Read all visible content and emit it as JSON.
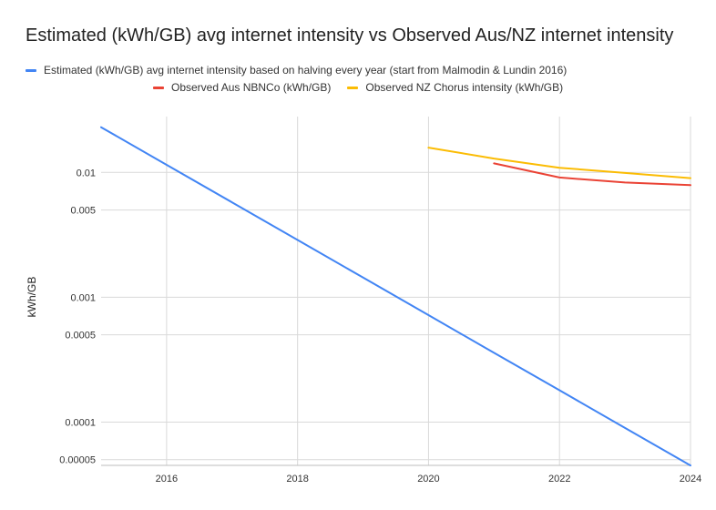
{
  "chart_data": {
    "type": "line",
    "title": "Estimated (kWh/GB) avg internet intensity vs Observed Aus/NZ internet intensity",
    "xlabel": "",
    "ylabel": "kWh/GB",
    "yscale": "log",
    "xlim": [
      2015,
      2024
    ],
    "ylim": [
      4.5e-05,
      0.028
    ],
    "x_ticks": [
      2016,
      2018,
      2020,
      2022,
      2024
    ],
    "x_tick_labels": [
      "2016",
      "2018",
      "2020",
      "2022",
      "2024"
    ],
    "y_ticks": [
      5e-05,
      0.0001,
      0.0005,
      0.001,
      0.005,
      0.01
    ],
    "y_tick_labels": [
      "0.00005",
      "0.0001",
      "0.0005",
      "0.001",
      "0.005",
      "0.01"
    ],
    "grid": true,
    "legend_position": "top",
    "series": [
      {
        "name": "Estimated (kWh/GB) avg internet intensity based on halving every year (start from Malmodin & Lundin 2016)",
        "color": "#4285f4",
        "points": [
          [
            2015,
            0.023
          ],
          [
            2016,
            0.0115
          ],
          [
            2017,
            0.00575
          ],
          [
            2018,
            0.002875
          ],
          [
            2019,
            0.0014375
          ],
          [
            2020,
            0.00071875
          ],
          [
            2021,
            0.000359
          ],
          [
            2022,
            0.00018
          ],
          [
            2023,
            8.98e-05
          ],
          [
            2024,
            4.49e-05
          ]
        ]
      },
      {
        "name": "Observed Aus NBNCo (kWh/GB)",
        "color": "#ea4335",
        "points": [
          [
            2021,
            0.0118
          ],
          [
            2022,
            0.0091
          ],
          [
            2023,
            0.0083
          ],
          [
            2024,
            0.0079
          ]
        ]
      },
      {
        "name": "Observed NZ Chorus intensity (kWh/GB)",
        "color": "#fbbc04",
        "points": [
          [
            2020,
            0.0158
          ],
          [
            2021,
            0.0129
          ],
          [
            2022,
            0.0109
          ],
          [
            2023,
            0.0099
          ],
          [
            2024,
            0.009
          ]
        ]
      }
    ]
  }
}
